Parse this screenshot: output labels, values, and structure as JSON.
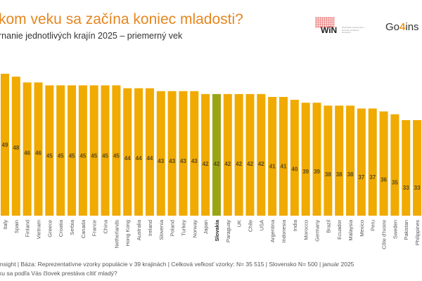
{
  "header": {
    "title": "kom veku sa začína koniec mladosti?",
    "subtitle": "rnanie jednotlivých krajín 2025 – priemerný vek"
  },
  "logos": {
    "win_text": "WiN",
    "win_small": "Worldwide Independent Network of Market Research",
    "go4insight": "Go4ins"
  },
  "colors": {
    "bar": "#f0aa00",
    "highlight": "#9aa514",
    "title": "#e5861f",
    "label": "#5a4a20"
  },
  "chart_data": {
    "type": "bar",
    "title": "kom veku sa začína koniec mladosti?",
    "ylim": [
      0,
      49
    ],
    "grid": false,
    "highlight": "Slovakia",
    "categories": [
      "Italy",
      "Spain",
      "Finland",
      "Vietnam",
      "Greece",
      "Croatia",
      "Serbia",
      "Canada",
      "France",
      "China",
      "Netherlands",
      "Hong Kong",
      "Australia",
      "Ireland",
      "Slovenia",
      "Poland",
      "Turkey",
      "Norway",
      "Japan",
      "Slovakia",
      "Paraguay",
      "UK",
      "Chile",
      "USA",
      "Argentina",
      "Indonesia",
      "India",
      "Morocco",
      "Germany",
      "Brazil",
      "Ecuador",
      "Malaysia",
      "Mexico",
      "Peru",
      "Côte d'Ivoire",
      "Sweden",
      "Pakistan",
      "Philippines"
    ],
    "values": [
      49,
      48,
      46,
      46,
      45,
      45,
      45,
      45,
      45,
      45,
      45,
      44,
      44,
      44,
      43,
      43,
      43,
      43,
      42,
      42,
      42,
      42,
      42,
      42,
      41,
      41,
      40,
      39,
      39,
      38,
      38,
      38,
      37,
      37,
      36,
      35,
      33,
      33
    ]
  },
  "footer": {
    "line1": "insight | Báza: Reprezentatívne vzorky populácie v 39 krajinách | Celková veľkosť vzorky: N= 35 515 | Slovensko N= 500 | január 2025",
    "line2": "ku sa podľa Vás človek prestáva cítiť mladý?"
  }
}
